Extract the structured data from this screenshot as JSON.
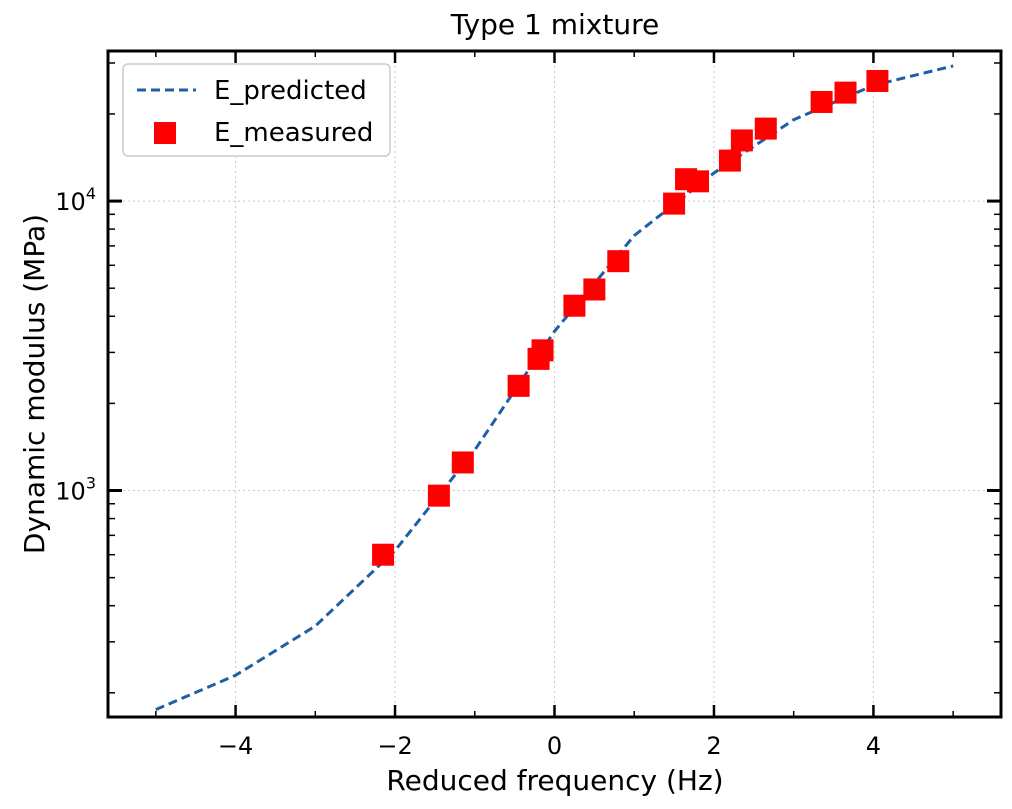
{
  "chart_data": {
    "type": "line",
    "title": "Type 1 mixture",
    "xlabel": "Reduced frequency (Hz)",
    "ylabel": "Dynamic modulus (MPa)",
    "xlim": [
      -5.6,
      5.6
    ],
    "ylim": [
      165,
      33000
    ],
    "yscale": "log",
    "grid": true,
    "legend_position": "top-left",
    "x_ticks": [
      {
        "value": -4,
        "label": "−4"
      },
      {
        "value": -2,
        "label": "−2"
      },
      {
        "value": 0,
        "label": "0"
      },
      {
        "value": 2,
        "label": "2"
      },
      {
        "value": 4,
        "label": "4"
      }
    ],
    "y_ticks": [
      {
        "value": 1000,
        "base": "10",
        "exp": "3"
      },
      {
        "value": 10000,
        "base": "10",
        "exp": "4"
      }
    ],
    "series": [
      {
        "name": "E_predicted",
        "style": "dashed-line",
        "color": "#1f5fa5",
        "x": [
          -5,
          -4,
          -3,
          -2,
          -1,
          0,
          1,
          2,
          3,
          4,
          5
        ],
        "y": [
          175,
          230,
          340,
          620,
          1380,
          3550,
          7600,
          12500,
          19100,
          25100,
          29300
        ]
      },
      {
        "name": "E_measured",
        "style": "square-marker",
        "color": "#ff0000",
        "x": [
          -2.15,
          -1.45,
          -1.15,
          -0.45,
          -0.2,
          -0.15,
          0.25,
          0.5,
          0.8,
          1.5,
          1.65,
          1.8,
          2.2,
          2.35,
          2.65,
          3.35,
          3.65,
          4.05
        ],
        "y": [
          600,
          960,
          1250,
          2300,
          2850,
          3050,
          4350,
          4950,
          6200,
          9800,
          11900,
          11700,
          13800,
          16200,
          17800,
          22000,
          23700,
          26000
        ]
      }
    ]
  }
}
